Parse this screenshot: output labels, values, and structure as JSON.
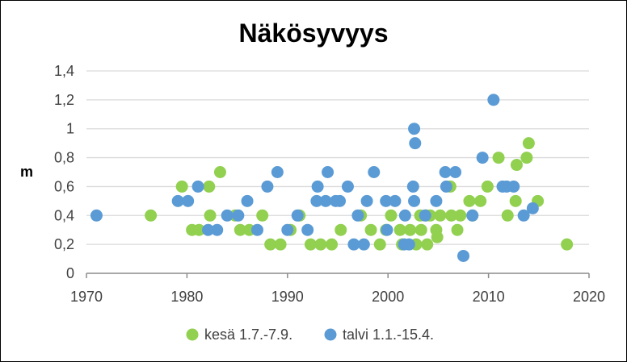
{
  "chart_data": {
    "type": "scatter",
    "title": "Näkösyvyys",
    "ylabel": "m",
    "xlabel": "",
    "xlim": [
      1970,
      2020
    ],
    "ylim": [
      0,
      1.4
    ],
    "x_ticks": [
      "1970",
      "1980",
      "1990",
      "2000",
      "2010",
      "2020"
    ],
    "y_ticks": [
      "0",
      "0,2",
      "0,4",
      "0,6",
      "0,8",
      "1",
      "1,2",
      "1,4"
    ],
    "grid": true,
    "legend_position": "bottom",
    "series": [
      {
        "name": "kesä 1.7.-7.9.",
        "color": "#92d050",
        "points": [
          [
            1976.4,
            0.4
          ],
          [
            1979.5,
            0.6
          ],
          [
            1980.5,
            0.3
          ],
          [
            1981.2,
            0.3
          ],
          [
            1982.2,
            0.6
          ],
          [
            1982.3,
            0.4
          ],
          [
            1983.3,
            0.7
          ],
          [
            1984.8,
            0.4
          ],
          [
            1985.3,
            0.3
          ],
          [
            1986.2,
            0.3
          ],
          [
            1987.5,
            0.4
          ],
          [
            1988.3,
            0.2
          ],
          [
            1989.3,
            0.2
          ],
          [
            1990.3,
            0.3
          ],
          [
            1991.2,
            0.4
          ],
          [
            1992.3,
            0.2
          ],
          [
            1993.3,
            0.2
          ],
          [
            1994.4,
            0.2
          ],
          [
            1995.3,
            0.3
          ],
          [
            1997.3,
            0.4
          ],
          [
            1998.3,
            0.3
          ],
          [
            1999.2,
            0.2
          ],
          [
            1999.8,
            0.3
          ],
          [
            2000.3,
            0.4
          ],
          [
            2001.2,
            0.3
          ],
          [
            2001.4,
            0.2
          ],
          [
            2002.2,
            0.3
          ],
          [
            2002.8,
            0.2
          ],
          [
            2003.2,
            0.4
          ],
          [
            2003.3,
            0.3
          ],
          [
            2003.8,
            0.4
          ],
          [
            2003.9,
            0.2
          ],
          [
            2004.2,
            0.4
          ],
          [
            2004.8,
            0.3
          ],
          [
            2004.9,
            0.25
          ],
          [
            2005.2,
            0.4
          ],
          [
            2006.2,
            0.6
          ],
          [
            2006.3,
            0.4
          ],
          [
            2006.9,
            0.3
          ],
          [
            2007.2,
            0.4
          ],
          [
            2008.1,
            0.5
          ],
          [
            2008.4,
            0.4
          ],
          [
            2009.2,
            0.5
          ],
          [
            2009.9,
            0.6
          ],
          [
            2011.0,
            0.8
          ],
          [
            2011.9,
            0.4
          ],
          [
            2012.7,
            0.5
          ],
          [
            2012.8,
            0.75
          ],
          [
            2013.8,
            0.8
          ],
          [
            2014.0,
            0.9
          ],
          [
            2014.9,
            0.5
          ],
          [
            2017.8,
            0.2
          ]
        ]
      },
      {
        "name": "talvi 1.1.-15.4.",
        "color": "#5b9bd5",
        "points": [
          [
            1971.0,
            0.4
          ],
          [
            1979.1,
            0.5
          ],
          [
            1980.1,
            0.5
          ],
          [
            1981.1,
            0.6
          ],
          [
            1982.1,
            0.3
          ],
          [
            1983.0,
            0.3
          ],
          [
            1984.0,
            0.4
          ],
          [
            1985.1,
            0.4
          ],
          [
            1986.0,
            0.5
          ],
          [
            1987.0,
            0.3
          ],
          [
            1988.0,
            0.6
          ],
          [
            1989.0,
            0.7
          ],
          [
            1990.0,
            0.3
          ],
          [
            1991.0,
            0.4
          ],
          [
            1992.0,
            0.3
          ],
          [
            1992.9,
            0.5
          ],
          [
            1993.0,
            0.6
          ],
          [
            1993.8,
            0.5
          ],
          [
            1994.0,
            0.7
          ],
          [
            1994.8,
            0.5
          ],
          [
            1995.2,
            0.5
          ],
          [
            1996.0,
            0.6
          ],
          [
            1996.6,
            0.2
          ],
          [
            1997.0,
            0.4
          ],
          [
            1997.6,
            0.2
          ],
          [
            1997.9,
            0.5
          ],
          [
            1998.6,
            0.7
          ],
          [
            1999.8,
            0.5
          ],
          [
            1999.9,
            0.3
          ],
          [
            2000.7,
            0.5
          ],
          [
            2001.6,
            0.2
          ],
          [
            2001.7,
            0.4
          ],
          [
            2002.1,
            0.2
          ],
          [
            2002.6,
            1.0
          ],
          [
            2002.7,
            0.9
          ],
          [
            2002.5,
            0.6
          ],
          [
            2002.6,
            0.5
          ],
          [
            2003.7,
            0.4
          ],
          [
            2004.8,
            0.5
          ],
          [
            2005.7,
            0.7
          ],
          [
            2005.8,
            0.6
          ],
          [
            2006.7,
            0.7
          ],
          [
            2007.5,
            0.12
          ],
          [
            2008.4,
            0.4
          ],
          [
            2009.4,
            0.8
          ],
          [
            2010.5,
            1.2
          ],
          [
            2011.4,
            0.6
          ],
          [
            2011.8,
            0.6
          ],
          [
            2012.5,
            0.6
          ],
          [
            2013.5,
            0.4
          ],
          [
            2014.4,
            0.45
          ]
        ]
      }
    ]
  }
}
